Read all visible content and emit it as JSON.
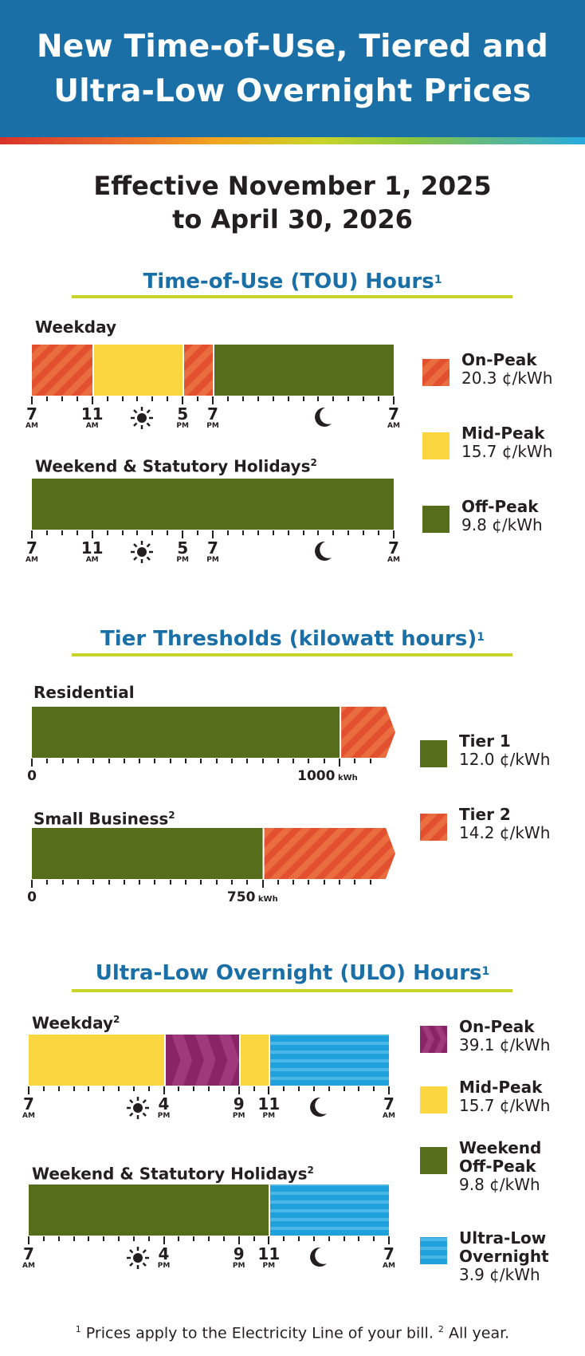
{
  "header": {
    "title_line1": "New Time-of-Use, Tiered and",
    "title_line2": "Ultra-Low Overnight Prices"
  },
  "effective": {
    "line1": "Effective November 1, 2025",
    "line2": "to April 30, 2026"
  },
  "tou": {
    "title": "Time-of-Use (TOU) Hours",
    "title_sup": "1",
    "weekday_label": "Weekday",
    "weekend_label": "Weekend & Statutory Holidays",
    "weekend_sup": "2",
    "weekday_segments": [
      {
        "type": "on-peak",
        "from": 7,
        "to": 11
      },
      {
        "type": "mid-peak",
        "from": 11,
        "to": 17
      },
      {
        "type": "on-peak",
        "from": 17,
        "to": 19
      },
      {
        "type": "off-peak",
        "from": 19,
        "to": 31
      }
    ],
    "weekend_segments": [
      {
        "type": "off-peak",
        "from": 7,
        "to": 31
      }
    ],
    "ticks": [
      {
        "hour": 7,
        "label": "7",
        "sub": "AM"
      },
      {
        "hour": 11,
        "label": "11",
        "sub": "AM"
      },
      {
        "hour": 17,
        "label": "5",
        "sub": "PM"
      },
      {
        "hour": 19,
        "label": "7",
        "sub": "PM"
      },
      {
        "hour": 31,
        "label": "7",
        "sub": "AM"
      }
    ],
    "legend": [
      {
        "name": "On-Peak",
        "price": "20.3 ¢/kWh",
        "swatch": "on-peak"
      },
      {
        "name": "Mid-Peak",
        "price": "15.7 ¢/kWh",
        "swatch": "mid-peak"
      },
      {
        "name": "Off-Peak",
        "price": "9.8 ¢/kWh",
        "swatch": "off-peak"
      }
    ]
  },
  "tiers": {
    "title": "Tier Thresholds (kilowatt hours)",
    "title_sup": "1",
    "residential_label": "Residential",
    "small_business_label": "Small Business",
    "small_business_sup": "2",
    "residential_threshold": 1000,
    "small_business_threshold": 750,
    "residential_threshold_label": "1000",
    "small_business_threshold_label": "750",
    "unit": "kWh",
    "zero_label": "0",
    "legend": [
      {
        "name": "Tier 1",
        "price": "12.0 ¢/kWh",
        "swatch": "off-peak"
      },
      {
        "name": "Tier 2",
        "price": "14.2 ¢/kWh",
        "swatch": "on-peak"
      }
    ]
  },
  "ulo": {
    "title": "Ultra-Low Overnight (ULO) Hours",
    "title_sup": "1",
    "weekday_label": "Weekday",
    "weekday_sup": "2",
    "weekend_label": "Weekend & Statutory Holidays",
    "weekend_sup": "2",
    "weekday_segments": [
      {
        "type": "mid-peak",
        "from": 7,
        "to": 16
      },
      {
        "type": "ulo-on-peak",
        "from": 16,
        "to": 21
      },
      {
        "type": "mid-peak",
        "from": 21,
        "to": 23
      },
      {
        "type": "ultra-low",
        "from": 23,
        "to": 31
      }
    ],
    "weekend_segments": [
      {
        "type": "off-peak",
        "from": 7,
        "to": 23
      },
      {
        "type": "ultra-low",
        "from": 23,
        "to": 31
      }
    ],
    "ticks": [
      {
        "hour": 7,
        "label": "7",
        "sub": "AM"
      },
      {
        "hour": 16,
        "label": "4",
        "sub": "PM"
      },
      {
        "hour": 21,
        "label": "9",
        "sub": "PM"
      },
      {
        "hour": 23,
        "label": "11",
        "sub": "PM"
      },
      {
        "hour": 31,
        "label": "7",
        "sub": "AM"
      }
    ],
    "legend": [
      {
        "name": "On-Peak",
        "price": "39.1 ¢/kWh",
        "swatch": "ulo-on-peak"
      },
      {
        "name": "Mid-Peak",
        "price": "15.7 ¢/kWh",
        "swatch": "mid-peak"
      },
      {
        "name": "Weekend Off-Peak",
        "price": "9.8 ¢/kWh",
        "swatch": "off-peak"
      },
      {
        "name": "Ultra-Low Overnight",
        "price": "3.9 ¢/kWh",
        "swatch": "ultra-low"
      }
    ]
  },
  "footnote": {
    "sup1": "1",
    "text1": " Prices apply to the Electricity Line of your bill. ",
    "sup2": "2",
    "text2": " All year."
  },
  "colors": {
    "banner": "#1a6fa7",
    "accent_rule": "#c8d42b",
    "on_peak": "#e2502f",
    "mid_peak": "#fcd641",
    "off_peak": "#566e1c",
    "ultra_low": "#1fa1dc",
    "ulo_on_peak": "#8a2468"
  }
}
